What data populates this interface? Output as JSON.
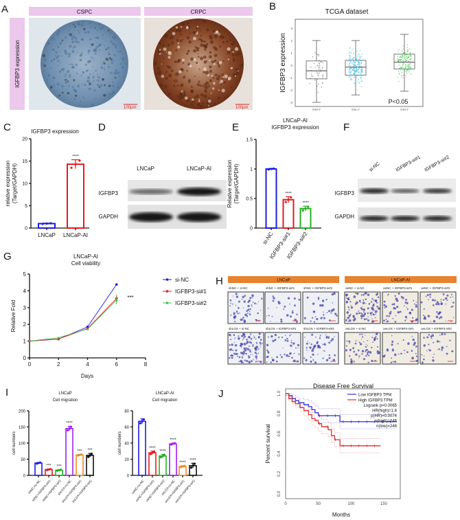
{
  "panel_a": {
    "label": "A",
    "columns": [
      "CSPC",
      "CRPC"
    ],
    "row_label": "IGFBP3 expression",
    "scale_bar": "100μm",
    "colors": {
      "header": "#ecc8ec",
      "cspc_stain": "#6f8fb0",
      "crpc_stain": "#8a4a2a"
    }
  },
  "panel_d": {
    "label": "D",
    "lanes": [
      "LNCaP",
      "LNCaP-AI"
    ],
    "rows": [
      "IGFBP3",
      "GAPDH"
    ],
    "band_intensity": {
      "IGFBP3": [
        0.45,
        1.0
      ],
      "GAPDH": [
        1.0,
        1.0
      ]
    }
  },
  "panel_f": {
    "label": "F",
    "lanes": [
      "si-NC",
      "IGFBP3-si#1",
      "IGFBP3-si#2"
    ],
    "rows": [
      "IGFBP3",
      "GAPDH"
    ],
    "band_intensity": {
      "IGFBP3": [
        0.9,
        0.6,
        0.8
      ],
      "GAPDH": [
        0.9,
        0.9,
        0.9
      ]
    }
  },
  "panel_h": {
    "label": "H",
    "groups": [
      {
        "name": "LNCaP",
        "captions": [
          "shNC + si-NC",
          "shNC + IGFBP3-si#1",
          "shNC + IGFBP3-si#2",
          "shLOX + si-NC",
          "shLOX + IGFBP3-si#1",
          "shLOX + IGFBP3-si#2"
        ],
        "cell_density": [
          0.45,
          0.15,
          0.2,
          0.95,
          0.4,
          0.4
        ]
      },
      {
        "name": "LNCaP-AI",
        "captions": [
          "oeNC + si-NC",
          "oeNC + IGFBP3-si#1",
          "oeNC + IGFBP3-si#2",
          "oeLOX + si-NC",
          "oeLOX + IGFBP3-si#1",
          "oeLOX + IGFBP3-si#2"
        ],
        "cell_density": [
          0.8,
          0.4,
          0.35,
          0.5,
          0.2,
          0.22
        ]
      }
    ],
    "header_color": "#e8822e"
  },
  "chart_data": [
    {
      "id": "B",
      "label": "B",
      "type": "box",
      "title": "TCGA   dataset",
      "ylabel": "IGFBP3  expression",
      "categories": [
        "GS<7",
        "GS=7",
        "GS>7"
      ],
      "boxes": [
        {
          "min": -3.0,
          "q1": -1.1,
          "median": -0.45,
          "q3": 0.35,
          "max": 2.0,
          "color": "#666666"
        },
        {
          "min": -2.4,
          "q1": -0.8,
          "median": -0.15,
          "q3": 0.4,
          "max": 2.0,
          "color": "#3cc0e0"
        },
        {
          "min": -2.1,
          "q1": -0.3,
          "median": 0.25,
          "q3": 0.9,
          "max": 2.5,
          "color": "#3cbf4a"
        }
      ],
      "ylim": [
        -3.2,
        3.6
      ],
      "yticks": [
        -3,
        -2,
        -1,
        0,
        1,
        2,
        3
      ],
      "annotation": "P<0.05"
    },
    {
      "id": "C",
      "label": "C",
      "type": "bar",
      "title": "IGFBP3 expression",
      "ylabel": "relative expression\n(Target/GAPDH)",
      "categories": [
        "LNCaP",
        "LNCaP-AI"
      ],
      "values": [
        1.0,
        14.3
      ],
      "errors": [
        0.1,
        1.0
      ],
      "significance": [
        "",
        "****"
      ],
      "colors": [
        "#1a1ae6",
        "#e61a1a"
      ],
      "ylim": [
        0,
        20
      ],
      "yticks": [
        0,
        5,
        10,
        15,
        20
      ]
    },
    {
      "id": "E",
      "label": "E",
      "type": "bar",
      "title": "LNCaP-AI\nIGFBP3 expression",
      "ylabel": "Relative expression\n(Target/GAPDH)",
      "categories": [
        "si-NC",
        "IGFBP3-si#1",
        "IGFBP3-si#2"
      ],
      "values": [
        1.0,
        0.48,
        0.33
      ],
      "errors": [
        0.01,
        0.05,
        0.04
      ],
      "significance": [
        "",
        "****",
        "****"
      ],
      "colors": [
        "#1a1ae6",
        "#e61a1a",
        "#22b022"
      ],
      "ylim": [
        0,
        1.5
      ],
      "yticks": [
        0.0,
        0.5,
        1.0,
        1.5
      ]
    },
    {
      "id": "G",
      "label": "G",
      "type": "line",
      "title": "LNCaP-AI\nCell viability",
      "xlabel": "Days",
      "ylabel": "Relative Fold",
      "x": [
        0,
        2,
        4,
        6
      ],
      "series": [
        {
          "name": "si-NC",
          "values": [
            1.0,
            1.12,
            1.85,
            4.38
          ],
          "error_last": 0.03,
          "color": "#1a1ae6"
        },
        {
          "name": "IGFBP3-si#1",
          "values": [
            1.0,
            1.13,
            1.75,
            3.55
          ],
          "error_last": 0.2,
          "color": "#e61a1a"
        },
        {
          "name": "IGFBP3-si#2",
          "values": [
            1.0,
            1.2,
            1.72,
            3.45
          ],
          "error_last": 0.25,
          "color": "#3cbf4a"
        }
      ],
      "xlim": [
        0,
        8
      ],
      "xticks": [
        0,
        2,
        4,
        6,
        8
      ],
      "ylim": [
        0,
        5
      ],
      "yticks": [
        0,
        1,
        2,
        3,
        4,
        5
      ],
      "annotation": "***",
      "legend": "right"
    },
    {
      "id": "I1",
      "label": "I",
      "type": "bar",
      "title": "LNCaP\nCell migration",
      "ylabel": "cell numbers",
      "categories": [
        "shNC+si-NC",
        "shNC+IGFBP3-si#1",
        "shNC+IGFBP3-si#2",
        "shLOX+si-NC",
        "shLOX+IGFBP3-si#1",
        "shLOX+IGFBP3-si#2"
      ],
      "values": [
        38,
        18,
        16,
        145,
        63,
        62
      ],
      "errors": [
        2,
        2,
        2,
        7,
        2,
        6
      ],
      "significance": [
        "",
        "***",
        "***",
        "****",
        "***",
        "***"
      ],
      "colors": [
        "#1a1ae6",
        "#e61a1a",
        "#22b022",
        "#a020f0",
        "#f08c1e",
        "#111111"
      ],
      "ylim": [
        0,
        200
      ],
      "yticks": [
        0,
        50,
        100,
        150,
        200
      ]
    },
    {
      "id": "I2",
      "label": "",
      "type": "bar",
      "title": "LNCaP-AI\nCell migration",
      "ylabel": "cell numbers",
      "categories": [
        "oeNC+si-NC",
        "oeNC+IGFBP3-si#1",
        "oeNC+IGFBP3-si#2",
        "oeLOX+si-NC",
        "oeLOX+IGFBP3-si#1",
        "oeLOX+IGFBP3-si#2"
      ],
      "values": [
        67,
        28,
        24,
        39,
        11,
        12
      ],
      "errors": [
        3,
        2,
        2,
        1,
        1,
        3
      ],
      "significance": [
        "",
        "****",
        "****",
        "****",
        "****",
        "****"
      ],
      "colors": [
        "#1a1ae6",
        "#e61a1a",
        "#22b022",
        "#a020f0",
        "#f08c1e",
        "#111111"
      ],
      "ylim": [
        0,
        80
      ],
      "yticks": [
        0,
        20,
        40,
        60,
        80
      ]
    },
    {
      "id": "J",
      "label": "J",
      "type": "km",
      "title": "Disease Free Survival",
      "xlabel": "Months",
      "ylabel": "Percent survival",
      "series": [
        {
          "name": "Low IGFBP3 TPM",
          "color": "#2a2ae0",
          "steps": [
            [
              0,
              1.0
            ],
            [
              5,
              0.98
            ],
            [
              10,
              0.95
            ],
            [
              15,
              0.93
            ],
            [
              20,
              0.91
            ],
            [
              28,
              0.89
            ],
            [
              35,
              0.87
            ],
            [
              40,
              0.84
            ],
            [
              45,
              0.81
            ],
            [
              50,
              0.78
            ],
            [
              83,
              0.72
            ],
            [
              170,
              0.72
            ]
          ]
        },
        {
          "name": "High IGFBP3 TPM",
          "color": "#e02a2a",
          "steps": [
            [
              0,
              1.0
            ],
            [
              5,
              0.95
            ],
            [
              10,
              0.92
            ],
            [
              15,
              0.9
            ],
            [
              22,
              0.86
            ],
            [
              28,
              0.83
            ],
            [
              35,
              0.79
            ],
            [
              40,
              0.75
            ],
            [
              45,
              0.73
            ],
            [
              50,
              0.7
            ],
            [
              55,
              0.67
            ],
            [
              65,
              0.64
            ],
            [
              70,
              0.58
            ],
            [
              75,
              0.54
            ],
            [
              83,
              0.48
            ],
            [
              145,
              0.48
            ]
          ]
        }
      ],
      "stats": [
        "Logrank p=0.0065",
        "HR(high)=1.8",
        "p(HR)=0.0074",
        "n(high)=246",
        "n(low)=246"
      ],
      "xlim": [
        0,
        175
      ],
      "xticks": [
        0,
        50,
        100,
        150
      ],
      "ylim": [
        0,
        1.0
      ],
      "yticks": [
        0.0,
        0.2,
        0.4,
        0.6,
        0.8,
        1.0
      ],
      "legend": "top-right"
    }
  ]
}
